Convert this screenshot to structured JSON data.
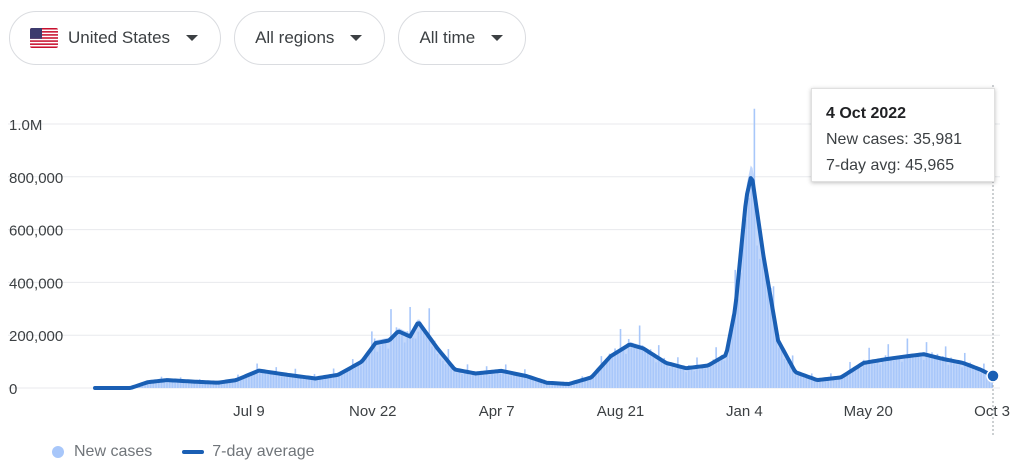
{
  "filters": {
    "location": "United States",
    "region": "All regions",
    "time": "All time"
  },
  "tooltip": {
    "date": "4 Oct 2022",
    "new_cases_label": "New cases: 35,981",
    "avg_label": "7-day avg: 45,965"
  },
  "legend": {
    "cases": "New cases",
    "avg": "7-day average"
  },
  "colors": {
    "bars": "#a8c7fa",
    "area": "#c2d7fb",
    "line": "#1a5fb4",
    "grid": "#e8eaed",
    "text": "#3c4043"
  },
  "chart_data": {
    "type": "area",
    "title": "",
    "xlabel": "",
    "ylabel": "",
    "ylim": [
      0,
      1150000
    ],
    "xlim": [
      "2020-01-22",
      "2022-10-04"
    ],
    "yticks": [
      0,
      200000,
      400000,
      600000,
      800000,
      1000000
    ],
    "ytick_labels": [
      "0",
      "200,000",
      "400,000",
      "600,000",
      "800,000",
      "1.0M"
    ],
    "xticks": [
      "2020-07-09",
      "2020-11-22",
      "2021-04-07",
      "2021-08-21",
      "2022-01-04",
      "2022-05-20",
      "2022-10-03"
    ],
    "xtick_labels": [
      "Jul 9",
      "Nov 22",
      "Apr 7",
      "Aug 21",
      "Jan 4",
      "May 20",
      "Oct 3"
    ],
    "series": [
      {
        "name": "7-day average",
        "x": [
          "2020-01-22",
          "2020-03-01",
          "2020-03-20",
          "2020-04-10",
          "2020-05-10",
          "2020-06-05",
          "2020-06-25",
          "2020-07-20",
          "2020-08-20",
          "2020-09-20",
          "2020-10-15",
          "2020-11-10",
          "2020-11-25",
          "2020-12-10",
          "2020-12-20",
          "2021-01-02",
          "2021-01-11",
          "2021-02-01",
          "2021-02-20",
          "2021-03-15",
          "2021-04-12",
          "2021-05-10",
          "2021-06-01",
          "2021-06-25",
          "2021-07-20",
          "2021-08-10",
          "2021-08-31",
          "2021-09-15",
          "2021-10-10",
          "2021-11-01",
          "2021-11-25",
          "2021-12-15",
          "2021-12-25",
          "2022-01-06",
          "2022-01-12",
          "2022-01-25",
          "2022-02-10",
          "2022-03-01",
          "2022-03-25",
          "2022-04-20",
          "2022-05-15",
          "2022-06-10",
          "2022-07-01",
          "2022-07-20",
          "2022-08-10",
          "2022-09-01",
          "2022-09-20",
          "2022-10-04"
        ],
        "values": [
          0,
          0,
          22000,
          30000,
          24000,
          20000,
          30000,
          66000,
          50000,
          36000,
          50000,
          100000,
          170000,
          180000,
          215000,
          195000,
          250000,
          150000,
          70000,
          55000,
          65000,
          45000,
          20000,
          15000,
          40000,
          120000,
          165000,
          150000,
          95000,
          75000,
          85000,
          125000,
          300000,
          720000,
          810000,
          500000,
          180000,
          60000,
          30000,
          40000,
          95000,
          110000,
          120000,
          128000,
          110000,
          95000,
          70000,
          45965
        ]
      }
    ],
    "tooltip": {
      "date": "2022-10-04",
      "new_cases": 35981,
      "avg_7day": 45965
    }
  }
}
